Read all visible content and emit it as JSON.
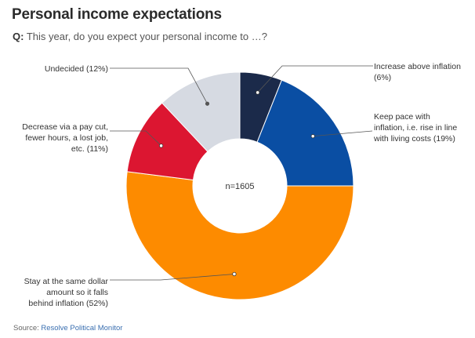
{
  "header": {
    "title": "Personal income expectations",
    "question_prefix": "Q:",
    "question_text": " This year, do you expect your personal income to …?"
  },
  "footer": {
    "source_label": "Source: ",
    "source_name": "Resolve Political Monitor"
  },
  "chart_data": {
    "type": "pie",
    "variant": "donut",
    "center_label": "n=1605",
    "unit": "%",
    "slices": [
      {
        "label": "Increase above inflation",
        "value": 6,
        "value_text": "(6%)",
        "color": "#1b2a4a",
        "label_lines": [
          "Increase above inflation",
          "(6%)"
        ]
      },
      {
        "label": "Keep pace with inflation, i.e. rise in line with living costs",
        "value": 19,
        "value_text": "(19%)",
        "color": "#0a4ea3",
        "label_lines": [
          "Keep pace with",
          "inflation, i.e. rise in line",
          "with living costs (19%)"
        ]
      },
      {
        "label": "Stay at the same dollar amount so it falls behind inflation",
        "value": 52,
        "value_text": "(52%)",
        "color": "#fd8b00",
        "label_lines": [
          "Stay at the same dollar",
          "amount so it falls",
          "behind inflation (52%)"
        ]
      },
      {
        "label": "Decrease via a pay cut, fewer hours, a lost job, etc.",
        "value": 11,
        "value_text": "(11%)",
        "color": "#dc1631",
        "label_lines": [
          "Decrease via a pay cut,",
          "fewer hours, a lost job,",
          "etc. (11%)"
        ]
      },
      {
        "label": "Undecided",
        "value": 12,
        "value_text": "(12%)",
        "color": "#d6dae2",
        "label_lines": [
          "Undecided (12%)"
        ]
      }
    ]
  }
}
